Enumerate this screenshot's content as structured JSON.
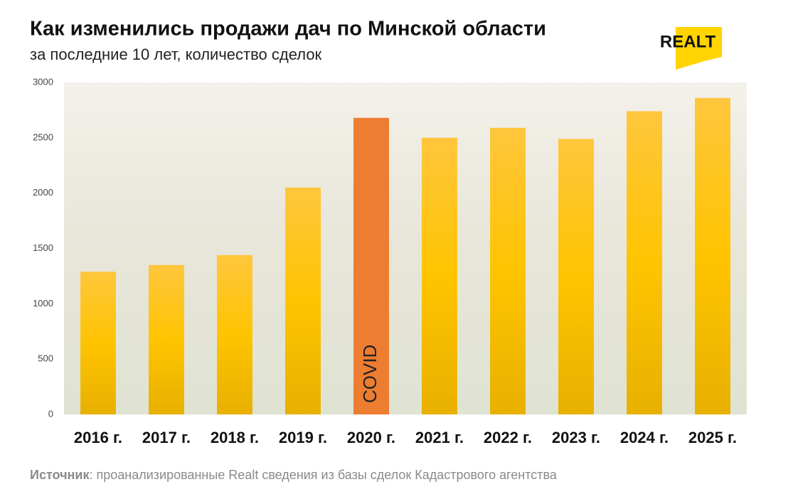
{
  "chart_data": {
    "type": "bar",
    "title": "Как изменились продажи дач по Минской области",
    "subtitle": "за последние 10 лет, количество сделок",
    "logo": "REALT",
    "categories": [
      "2016 г.",
      "2017 г.",
      "2018 г.",
      "2019 г.",
      "2020 г.",
      "2021 г.",
      "2022 г.",
      "2023 г.",
      "2024 г.",
      "2025 г."
    ],
    "values": [
      1290,
      1350,
      1440,
      2050,
      2680,
      2500,
      2590,
      2490,
      2740,
      2860
    ],
    "colors": [
      "#f7c01a",
      "#f7c01a",
      "#f7c01a",
      "#f7c01a",
      "#ed7d31",
      "#f7c01a",
      "#f7c01a",
      "#f7c01a",
      "#f7c01a",
      "#f7c01a"
    ],
    "annotation": {
      "text": "COVID",
      "category": "2020 г."
    },
    "ylim": [
      0,
      3000
    ],
    "yticks": [
      0,
      500,
      1000,
      1500,
      2000,
      2500,
      3000
    ],
    "source_label": "Источник",
    "source_text": ": проанализированные Realt сведения из базы сделок Кадастрового агентства"
  }
}
